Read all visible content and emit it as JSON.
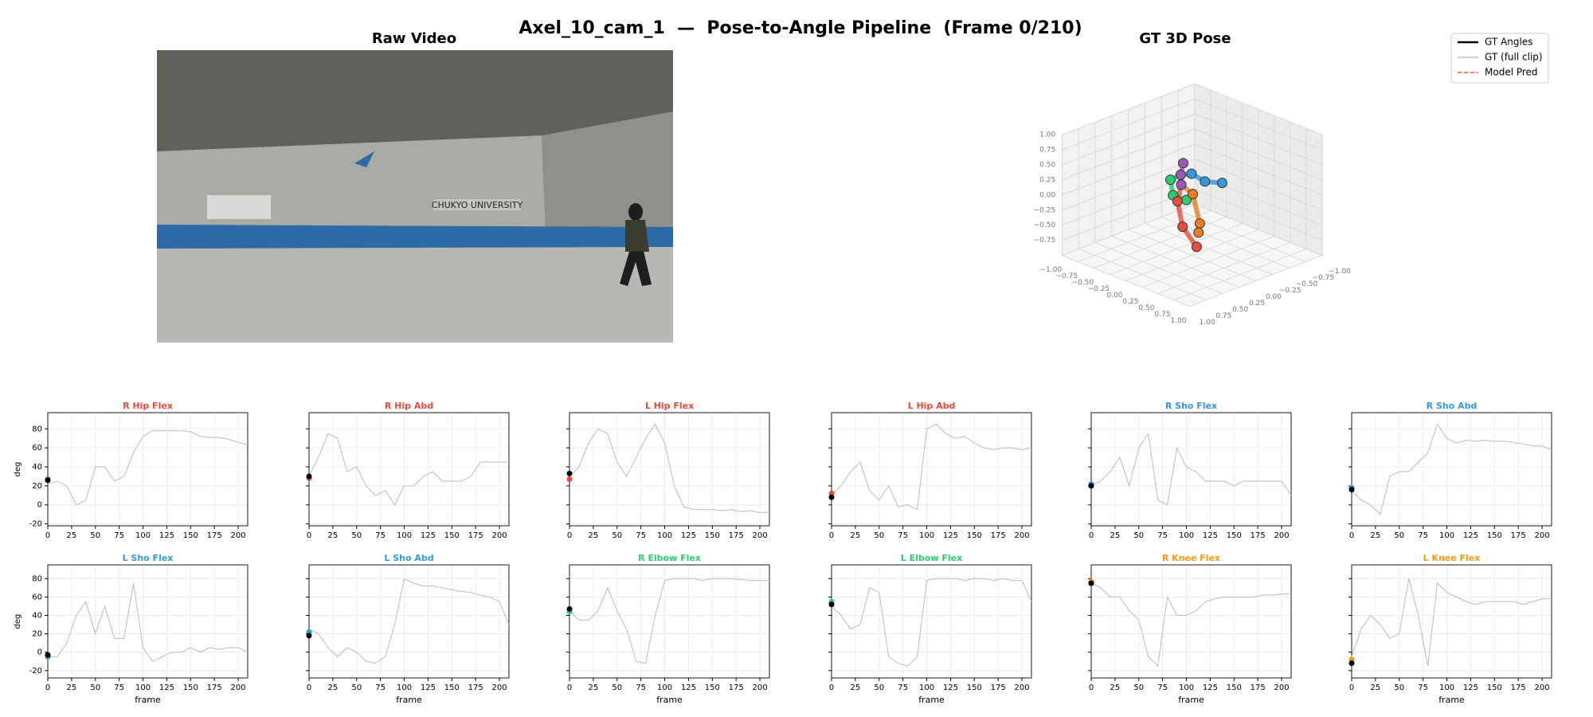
{
  "title": "Axel_10_cam_1  —  Pose-to-Angle Pipeline  (Frame 0/210)",
  "frame": 0,
  "video": {
    "title": "Raw Video",
    "sign": "CHUKYO UNIVERSITY"
  },
  "pose": {
    "title": "GT 3D Pose",
    "xlim": [
      -1,
      1
    ],
    "ylim": [
      -1,
      1
    ],
    "zlim": [
      -1,
      1
    ],
    "xticks": [
      {
        "value": -1,
        "label": "−1.00"
      },
      {
        "value": -0.75,
        "label": "−0.75"
      },
      {
        "value": -0.5,
        "label": "−0.50"
      },
      {
        "value": -0.25,
        "label": "−0.25"
      },
      {
        "value": 0,
        "label": "0.00"
      },
      {
        "value": 0.25,
        "label": "0.25"
      },
      {
        "value": 0.5,
        "label": "0.50"
      },
      {
        "value": 0.75,
        "label": "0.75"
      },
      {
        "value": 1,
        "label": "1.00"
      }
    ],
    "yticks": [
      {
        "value": 1,
        "label": "1.00"
      },
      {
        "value": 0.75,
        "label": "0.75"
      },
      {
        "value": 0.5,
        "label": "0.50"
      },
      {
        "value": 0.25,
        "label": "0.25"
      },
      {
        "value": 0,
        "label": "0.00"
      },
      {
        "value": -0.25,
        "label": "−0.25"
      },
      {
        "value": -0.5,
        "label": "−0.50"
      },
      {
        "value": -0.75,
        "label": "−0.75"
      },
      {
        "value": -1,
        "label": "−1.00"
      }
    ],
    "zticks": [
      {
        "value": 1,
        "label": "1.00"
      },
      {
        "value": 0.75,
        "label": "0.75"
      },
      {
        "value": 0.5,
        "label": "0.50"
      },
      {
        "value": 0.25,
        "label": "0.25"
      },
      {
        "value": 0,
        "label": "0.00"
      },
      {
        "value": -0.25,
        "label": "−0.25"
      },
      {
        "value": -0.5,
        "label": "−0.50"
      },
      {
        "value": -0.75,
        "label": "−0.75"
      }
    ],
    "joints": [
      {
        "x": -0.14,
        "y": 0,
        "z": 0.47,
        "color": "#9b59b6"
      },
      {
        "x": -0.18,
        "y": 0,
        "z": 0.26,
        "color": "#9b59b6"
      },
      {
        "x": -0.17,
        "y": 0,
        "z": 0.1,
        "color": "#9b59b6"
      },
      {
        "x": -0.01,
        "y": 0,
        "z": 0.35,
        "color": "#3498db"
      },
      {
        "x": 0.2,
        "y": 0,
        "z": 0.31,
        "color": "#3498db"
      },
      {
        "x": 0.47,
        "y": 0,
        "z": 0.4,
        "color": "#3498db"
      },
      {
        "x": -0.34,
        "y": 0,
        "z": 0.11,
        "color": "#2ecc71"
      },
      {
        "x": -0.3,
        "y": 0,
        "z": -0.13,
        "color": "#2ecc71"
      },
      {
        "x": -0.09,
        "y": 0,
        "z": -0.12,
        "color": "#2ecc71"
      },
      {
        "x": 0.01,
        "y": 0,
        "z": 0.02,
        "color": "#e67e22"
      },
      {
        "x": 0.12,
        "y": 0,
        "z": -0.42,
        "color": "#e67e22"
      },
      {
        "x": 0.1,
        "y": 0,
        "z": -0.58,
        "color": "#e67e22"
      },
      {
        "x": -0.23,
        "y": 0,
        "z": -0.2,
        "color": "#e74c3c"
      },
      {
        "x": -0.15,
        "y": 0,
        "z": -0.59,
        "color": "#e74c3c"
      },
      {
        "x": 0.07,
        "y": 0,
        "z": -0.83,
        "color": "#e74c3c"
      }
    ],
    "bones": [
      [
        0,
        1
      ],
      [
        1,
        2
      ],
      [
        1,
        3
      ],
      [
        3,
        4
      ],
      [
        4,
        5
      ],
      [
        1,
        6
      ],
      [
        6,
        7
      ],
      [
        7,
        8
      ],
      [
        2,
        9
      ],
      [
        9,
        10
      ],
      [
        10,
        11
      ],
      [
        2,
        12
      ],
      [
        12,
        13
      ],
      [
        13,
        14
      ]
    ]
  },
  "legend": [
    {
      "name": "GT Angles",
      "color": "#000000",
      "style": "solid"
    },
    {
      "name": "GT (full clip)",
      "color": "#c0c0c0",
      "style": "solid"
    },
    {
      "name": "Model Pred",
      "color": "#e74c3c",
      "style": "dashed"
    }
  ],
  "chart_data": [
    {
      "type": "line",
      "title": "R Hip Flex",
      "color": "#e74c3c",
      "ylabel": "deg",
      "ytick_labels": true,
      "x": [
        0,
        10,
        20,
        30,
        40,
        50,
        60,
        70,
        80,
        90,
        100,
        110,
        120,
        130,
        140,
        150,
        160,
        170,
        180,
        190,
        200,
        210
      ],
      "values": [
        22,
        25,
        20,
        0,
        5,
        40,
        40,
        25,
        30,
        55,
        72,
        78,
        78,
        78,
        78,
        77,
        72,
        71,
        71,
        69,
        66,
        63
      ],
      "gt_angle": 26,
      "pred": 27,
      "xlim": [
        0,
        210
      ],
      "ylim": [
        -22,
        97
      ],
      "xticks": [
        0,
        25,
        50,
        75,
        100,
        125,
        150,
        175,
        200
      ],
      "yticks": [
        -20,
        0,
        20,
        40,
        60,
        80
      ],
      "grid": true
    },
    {
      "type": "line",
      "title": "R Hip Abd",
      "color": "#e74c3c",
      "ytick_labels": false,
      "x": [
        0,
        10,
        20,
        30,
        40,
        50,
        60,
        70,
        80,
        90,
        100,
        110,
        120,
        130,
        140,
        150,
        160,
        170,
        180,
        190,
        200,
        210
      ],
      "values": [
        30,
        50,
        75,
        70,
        35,
        40,
        20,
        10,
        15,
        0,
        20,
        20,
        30,
        35,
        25,
        25,
        25,
        30,
        45,
        45,
        45,
        45
      ],
      "gt_angle": 30,
      "pred": 28,
      "xlim": [
        0,
        210
      ],
      "ylim": [
        -22,
        97
      ],
      "xticks": [
        0,
        25,
        50,
        75,
        100,
        125,
        150,
        175,
        200
      ],
      "yticks": [
        -20,
        0,
        20,
        40,
        60,
        80
      ],
      "grid": true
    },
    {
      "type": "line",
      "title": "L Hip Flex",
      "color": "#e74c3c",
      "ytick_labels": false,
      "x": [
        0,
        10,
        20,
        30,
        40,
        50,
        60,
        70,
        80,
        90,
        100,
        110,
        120,
        130,
        140,
        150,
        160,
        170,
        180,
        190,
        200,
        210
      ],
      "values": [
        30,
        40,
        65,
        80,
        75,
        45,
        30,
        50,
        70,
        85,
        65,
        20,
        -2,
        -5,
        -5,
        -5,
        -6,
        -5,
        -7,
        -6,
        -8,
        -8
      ],
      "gt_angle": 33,
      "pred": 27,
      "xlim": [
        0,
        210
      ],
      "ylim": [
        -22,
        97
      ],
      "xticks": [
        0,
        25,
        50,
        75,
        100,
        125,
        150,
        175,
        200
      ],
      "yticks": [
        -20,
        0,
        20,
        40,
        60,
        80
      ],
      "grid": true
    },
    {
      "type": "line",
      "title": "L Hip Abd",
      "color": "#e74c3c",
      "ytick_labels": false,
      "x": [
        0,
        10,
        20,
        30,
        40,
        50,
        60,
        70,
        80,
        90,
        100,
        110,
        120,
        130,
        140,
        150,
        160,
        170,
        180,
        190,
        200,
        210
      ],
      "values": [
        10,
        20,
        35,
        45,
        15,
        5,
        20,
        -2,
        0,
        -5,
        80,
        85,
        75,
        70,
        72,
        65,
        60,
        58,
        60,
        60,
        58,
        60
      ],
      "gt_angle": 8,
      "pred": 12,
      "xlim": [
        0,
        210
      ],
      "ylim": [
        -22,
        97
      ],
      "xticks": [
        0,
        25,
        50,
        75,
        100,
        125,
        150,
        175,
        200
      ],
      "yticks": [
        -20,
        0,
        20,
        40,
        60,
        80
      ],
      "grid": true
    },
    {
      "type": "line",
      "title": "R Sho Flex",
      "color": "#3498db",
      "ytick_labels": false,
      "x": [
        0,
        10,
        20,
        30,
        40,
        50,
        60,
        70,
        80,
        90,
        100,
        110,
        120,
        130,
        140,
        150,
        160,
        170,
        180,
        190,
        200,
        210
      ],
      "values": [
        20,
        25,
        35,
        50,
        20,
        60,
        75,
        5,
        0,
        60,
        40,
        35,
        25,
        25,
        25,
        20,
        25,
        25,
        25,
        25,
        25,
        10
      ],
      "gt_angle": 20,
      "pred": 22,
      "xlim": [
        0,
        210
      ],
      "ylim": [
        -22,
        97
      ],
      "xticks": [
        0,
        25,
        50,
        75,
        100,
        125,
        150,
        175,
        200
      ],
      "yticks": [
        -20,
        0,
        20,
        40,
        60,
        80
      ],
      "grid": true
    },
    {
      "type": "line",
      "title": "R Sho Abd",
      "color": "#3498db",
      "ytick_labels": false,
      "x": [
        0,
        10,
        20,
        30,
        40,
        50,
        60,
        70,
        80,
        90,
        100,
        110,
        120,
        130,
        140,
        150,
        160,
        170,
        180,
        190,
        200,
        210
      ],
      "values": [
        15,
        5,
        0,
        -10,
        30,
        35,
        35,
        45,
        55,
        85,
        70,
        65,
        68,
        67,
        68,
        67,
        67,
        66,
        64,
        62,
        62,
        58
      ],
      "gt_angle": 16,
      "pred": 18,
      "xlim": [
        0,
        210
      ],
      "ylim": [
        -22,
        97
      ],
      "xticks": [
        0,
        25,
        50,
        75,
        100,
        125,
        150,
        175,
        200
      ],
      "yticks": [
        -20,
        0,
        20,
        40,
        60,
        80
      ],
      "grid": true
    },
    {
      "type": "line",
      "title": "L Sho Flex",
      "color": "#3498db",
      "ylabel": "deg",
      "xlabel": "frame",
      "ytick_labels": true,
      "x": [
        0,
        10,
        20,
        30,
        40,
        50,
        60,
        70,
        80,
        90,
        100,
        110,
        120,
        130,
        140,
        150,
        160,
        170,
        180,
        190,
        200,
        210
      ],
      "values": [
        -5,
        -5,
        10,
        40,
        55,
        20,
        50,
        15,
        15,
        75,
        5,
        -10,
        -5,
        0,
        0,
        5,
        0,
        5,
        3,
        5,
        5,
        0
      ],
      "gt_angle": -3,
      "pred": -5,
      "xlim": [
        0,
        210
      ],
      "ylim": [
        -28,
        95
      ],
      "xticks": [
        0,
        25,
        50,
        75,
        100,
        125,
        150,
        175,
        200
      ],
      "yticks": [
        -20,
        0,
        20,
        40,
        60,
        80
      ],
      "grid": true
    },
    {
      "type": "line",
      "title": "L Sho Abd",
      "color": "#3498db",
      "xlabel": "frame",
      "ytick_labels": false,
      "x": [
        0,
        10,
        20,
        30,
        40,
        50,
        60,
        70,
        80,
        90,
        100,
        110,
        120,
        130,
        140,
        150,
        160,
        170,
        180,
        190,
        200,
        210
      ],
      "values": [
        25,
        20,
        5,
        -5,
        5,
        0,
        -10,
        -12,
        -5,
        30,
        80,
        75,
        72,
        72,
        70,
        68,
        66,
        65,
        62,
        60,
        55,
        30
      ],
      "gt_angle": 18,
      "pred": 22,
      "xlim": [
        0,
        210
      ],
      "ylim": [
        -28,
        95
      ],
      "xticks": [
        0,
        25,
        50,
        75,
        100,
        125,
        150,
        175,
        200
      ],
      "yticks": [
        -20,
        0,
        20,
        40,
        60,
        80
      ],
      "grid": true
    },
    {
      "type": "line",
      "title": "R Elbow Flex",
      "color": "#2ecc71",
      "xlabel": "frame",
      "ytick_labels": false,
      "x": [
        0,
        10,
        20,
        30,
        40,
        50,
        60,
        70,
        80,
        90,
        100,
        110,
        120,
        130,
        140,
        150,
        160,
        170,
        180,
        190,
        200,
        210
      ],
      "values": [
        45,
        35,
        35,
        45,
        70,
        45,
        25,
        -10,
        -12,
        40,
        78,
        80,
        80,
        80,
        78,
        80,
        80,
        80,
        79,
        78,
        78,
        78
      ],
      "gt_angle": 47,
      "pred": 44,
      "xlim": [
        0,
        210
      ],
      "ylim": [
        -28,
        95
      ],
      "xticks": [
        0,
        25,
        50,
        75,
        100,
        125,
        150,
        175,
        200
      ],
      "yticks": [
        -20,
        0,
        20,
        40,
        60,
        80
      ],
      "grid": true
    },
    {
      "type": "line",
      "title": "L Elbow Flex",
      "color": "#2ecc71",
      "xlabel": "frame",
      "ytick_labels": false,
      "x": [
        0,
        10,
        20,
        30,
        40,
        50,
        60,
        70,
        80,
        90,
        100,
        110,
        120,
        130,
        140,
        150,
        160,
        170,
        180,
        190,
        200,
        210
      ],
      "values": [
        50,
        40,
        25,
        30,
        70,
        65,
        -5,
        -12,
        -15,
        -5,
        78,
        80,
        80,
        80,
        78,
        80,
        80,
        78,
        80,
        78,
        78,
        55
      ],
      "gt_angle": 52,
      "pred": 55,
      "xlim": [
        0,
        210
      ],
      "ylim": [
        -28,
        95
      ],
      "xticks": [
        0,
        25,
        50,
        75,
        100,
        125,
        150,
        175,
        200
      ],
      "yticks": [
        -20,
        0,
        20,
        40,
        60,
        80
      ],
      "grid": true
    },
    {
      "type": "line",
      "title": "R Knee Flex",
      "color": "#f39c12",
      "xlabel": "frame",
      "ytick_labels": false,
      "x": [
        0,
        10,
        20,
        30,
        40,
        50,
        60,
        70,
        80,
        90,
        100,
        110,
        120,
        130,
        140,
        150,
        160,
        170,
        180,
        190,
        200,
        210
      ],
      "values": [
        75,
        70,
        60,
        60,
        45,
        35,
        -5,
        -15,
        60,
        40,
        40,
        45,
        55,
        58,
        60,
        60,
        60,
        60,
        62,
        62,
        63,
        64
      ],
      "gt_angle": 75,
      "pred": 77,
      "xlim": [
        0,
        210
      ],
      "ylim": [
        -28,
        95
      ],
      "xticks": [
        0,
        25,
        50,
        75,
        100,
        125,
        150,
        175,
        200
      ],
      "yticks": [
        -20,
        0,
        20,
        40,
        60,
        80
      ],
      "grid": true
    },
    {
      "type": "line",
      "title": "L Knee Flex",
      "color": "#f39c12",
      "xlabel": "frame",
      "ytick_labels": false,
      "x": [
        0,
        10,
        20,
        30,
        40,
        50,
        60,
        70,
        80,
        90,
        100,
        110,
        120,
        130,
        140,
        150,
        160,
        170,
        180,
        190,
        200,
        210
      ],
      "values": [
        -5,
        25,
        40,
        30,
        15,
        20,
        80,
        40,
        -15,
        75,
        65,
        60,
        55,
        52,
        55,
        55,
        55,
        55,
        52,
        55,
        58,
        58
      ],
      "gt_angle": -12,
      "pred": -8,
      "xlim": [
        0,
        210
      ],
      "ylim": [
        -28,
        95
      ],
      "xticks": [
        0,
        25,
        50,
        75,
        100,
        125,
        150,
        175,
        200
      ],
      "yticks": [
        -20,
        0,
        20,
        40,
        60,
        80
      ],
      "grid": true
    }
  ]
}
